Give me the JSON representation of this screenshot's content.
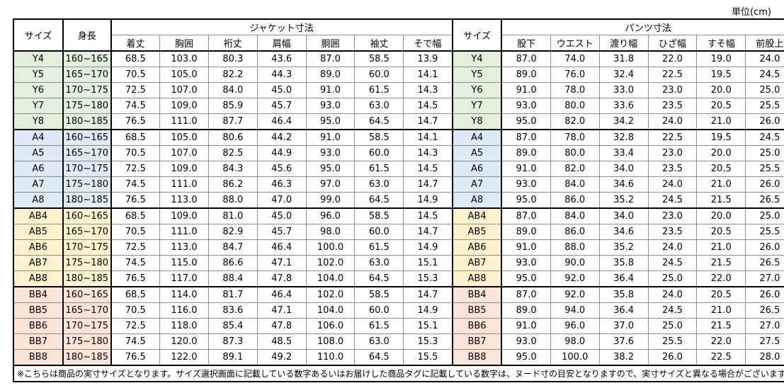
{
  "unit": "単位(cm)",
  "header": {
    "size": "サイズ",
    "height": "身長",
    "jacket": "ジャケット寸法",
    "pants": "パンツ寸法",
    "jacket_cols": [
      "着丈",
      "胸囲",
      "裄丈",
      "肩幅",
      "胴囲",
      "袖丈",
      "そで幅"
    ],
    "pants_cols": [
      "股下",
      "ウエスト",
      "渡り幅",
      "ひざ幅",
      "すそ幅",
      "前股上"
    ]
  },
  "groups": [
    {
      "color": "#e2efda",
      "rows": [
        {
          "size": "Y4",
          "height": "160~165",
          "jacket": [
            "68.5",
            "103.0",
            "80.3",
            "43.6",
            "87.0",
            "58.5",
            "13.9"
          ],
          "pants": [
            "87.0",
            "74.0",
            "31.8",
            "22.0",
            "19.0",
            "24.0"
          ]
        },
        {
          "size": "Y5",
          "height": "165~170",
          "jacket": [
            "70.5",
            "105.0",
            "82.2",
            "44.3",
            "89.0",
            "60.0",
            "14.1"
          ],
          "pants": [
            "89.0",
            "76.0",
            "32.4",
            "22.5",
            "19.5",
            "24.5"
          ]
        },
        {
          "size": "Y6",
          "height": "170~175",
          "jacket": [
            "72.5",
            "107.0",
            "84.0",
            "45.0",
            "91.0",
            "61.5",
            "14.3"
          ],
          "pants": [
            "91.0",
            "78.0",
            "33.0",
            "23.0",
            "20.0",
            "25.0"
          ]
        },
        {
          "size": "Y7",
          "height": "175~180",
          "jacket": [
            "74.5",
            "109.0",
            "85.9",
            "45.7",
            "93.0",
            "63.0",
            "14.5"
          ],
          "pants": [
            "93.0",
            "80.0",
            "33.6",
            "23.5",
            "20.5",
            "25.5"
          ]
        },
        {
          "size": "Y8",
          "height": "180~185",
          "jacket": [
            "76.5",
            "111.0",
            "87.7",
            "46.4",
            "95.0",
            "64.5",
            "14.7"
          ],
          "pants": [
            "95.0",
            "82.0",
            "34.2",
            "24.0",
            "21.0",
            "26.0"
          ]
        }
      ]
    },
    {
      "color": "#ddebf7",
      "rows": [
        {
          "size": "A4",
          "height": "160~165",
          "jacket": [
            "68.5",
            "105.0",
            "80.6",
            "44.2",
            "91.0",
            "58.5",
            "14.1"
          ],
          "pants": [
            "87.0",
            "78.0",
            "32.8",
            "22.5",
            "19.5",
            "24.5"
          ]
        },
        {
          "size": "A5",
          "height": "165~170",
          "jacket": [
            "70.5",
            "107.0",
            "82.5",
            "44.9",
            "93.0",
            "60.0",
            "14.3"
          ],
          "pants": [
            "89.0",
            "80.0",
            "33.4",
            "23.0",
            "20.0",
            "25.0"
          ]
        },
        {
          "size": "A6",
          "height": "170~175",
          "jacket": [
            "72.5",
            "109.0",
            "84.3",
            "45.6",
            "95.0",
            "61.5",
            "14.5"
          ],
          "pants": [
            "91.0",
            "82.0",
            "34.0",
            "23.5",
            "20.5",
            "25.5"
          ]
        },
        {
          "size": "A7",
          "height": "175~180",
          "jacket": [
            "74.5",
            "111.0",
            "86.2",
            "46.3",
            "97.0",
            "63.0",
            "14.7"
          ],
          "pants": [
            "93.0",
            "84.0",
            "34.6",
            "24.0",
            "21.0",
            "26.0"
          ]
        },
        {
          "size": "A8",
          "height": "180~185",
          "jacket": [
            "76.5",
            "113.0",
            "88.0",
            "47.0",
            "99.0",
            "64.5",
            "14.9"
          ],
          "pants": [
            "95.0",
            "86.0",
            "35.2",
            "24.5",
            "21.5",
            "26.5"
          ]
        }
      ]
    },
    {
      "color": "#fff2cc",
      "rows": [
        {
          "size": "AB4",
          "height": "160~165",
          "jacket": [
            "68.5",
            "109.0",
            "81.0",
            "45.0",
            "96.0",
            "58.5",
            "14.5"
          ],
          "pants": [
            "87.0",
            "84.0",
            "34.0",
            "23.0",
            "20.0",
            "25.0"
          ]
        },
        {
          "size": "AB5",
          "height": "165~170",
          "jacket": [
            "70.5",
            "111.0",
            "82.9",
            "45.7",
            "98.0",
            "60.0",
            "14.7"
          ],
          "pants": [
            "89.0",
            "86.0",
            "34.6",
            "23.5",
            "20.5",
            "25.5"
          ]
        },
        {
          "size": "AB6",
          "height": "170~175",
          "jacket": [
            "72.5",
            "113.0",
            "84.7",
            "46.4",
            "100.0",
            "61.5",
            "14.9"
          ],
          "pants": [
            "91.0",
            "88.0",
            "35.2",
            "24.0",
            "21.0",
            "26.0"
          ]
        },
        {
          "size": "AB7",
          "height": "175~180",
          "jacket": [
            "74.5",
            "115.0",
            "86.6",
            "47.1",
            "102.0",
            "63.0",
            "15.1"
          ],
          "pants": [
            "93.0",
            "90.0",
            "35.8",
            "24.5",
            "21.5",
            "26.5"
          ]
        },
        {
          "size": "AB8",
          "height": "180~185",
          "jacket": [
            "76.5",
            "117.0",
            "88.4",
            "47.8",
            "104.0",
            "64.5",
            "15.3"
          ],
          "pants": [
            "95.0",
            "92.0",
            "36.4",
            "25.0",
            "22.0",
            "27.0"
          ]
        }
      ]
    },
    {
      "color": "#fce4d6",
      "rows": [
        {
          "size": "BB4",
          "height": "160~165",
          "jacket": [
            "68.5",
            "114.0",
            "81.7",
            "46.4",
            "102.0",
            "58.5",
            "14.7"
          ],
          "pants": [
            "87.0",
            "92.0",
            "35.8",
            "24.0",
            "20.5",
            "26.0"
          ]
        },
        {
          "size": "BB5",
          "height": "165~170",
          "jacket": [
            "70.5",
            "116.0",
            "83.6",
            "47.1",
            "104.0",
            "60.0",
            "14.9"
          ],
          "pants": [
            "89.0",
            "94.0",
            "36.4",
            "24.5",
            "21.0",
            "26.5"
          ]
        },
        {
          "size": "BB6",
          "height": "170~175",
          "jacket": [
            "72.5",
            "118.0",
            "85.4",
            "47.8",
            "106.0",
            "61.5",
            "15.1"
          ],
          "pants": [
            "91.0",
            "96.0",
            "37.0",
            "25.0",
            "21.5",
            "27.0"
          ]
        },
        {
          "size": "BB7",
          "height": "175~180",
          "jacket": [
            "74.5",
            "120.0",
            "87.3",
            "48.5",
            "108.0",
            "63.0",
            "15.3"
          ],
          "pants": [
            "93.0",
            "98.0",
            "37.6",
            "25.5",
            "22.0",
            "27.5"
          ]
        },
        {
          "size": "BB8",
          "height": "180~185",
          "jacket": [
            "76.5",
            "122.0",
            "89.1",
            "49.2",
            "110.0",
            "64.5",
            "15.5"
          ],
          "pants": [
            "95.0",
            "100.0",
            "38.2",
            "26.0",
            "22.5",
            "28.0"
          ]
        }
      ]
    }
  ],
  "note": "※こちらは商品の実寸サイズとなります。サイズ選択画面に記載している数字あるいはお届けした商品タグに記載している数字は、ヌード寸の目安となりますので、実寸サイズと異なる場合がございます。"
}
